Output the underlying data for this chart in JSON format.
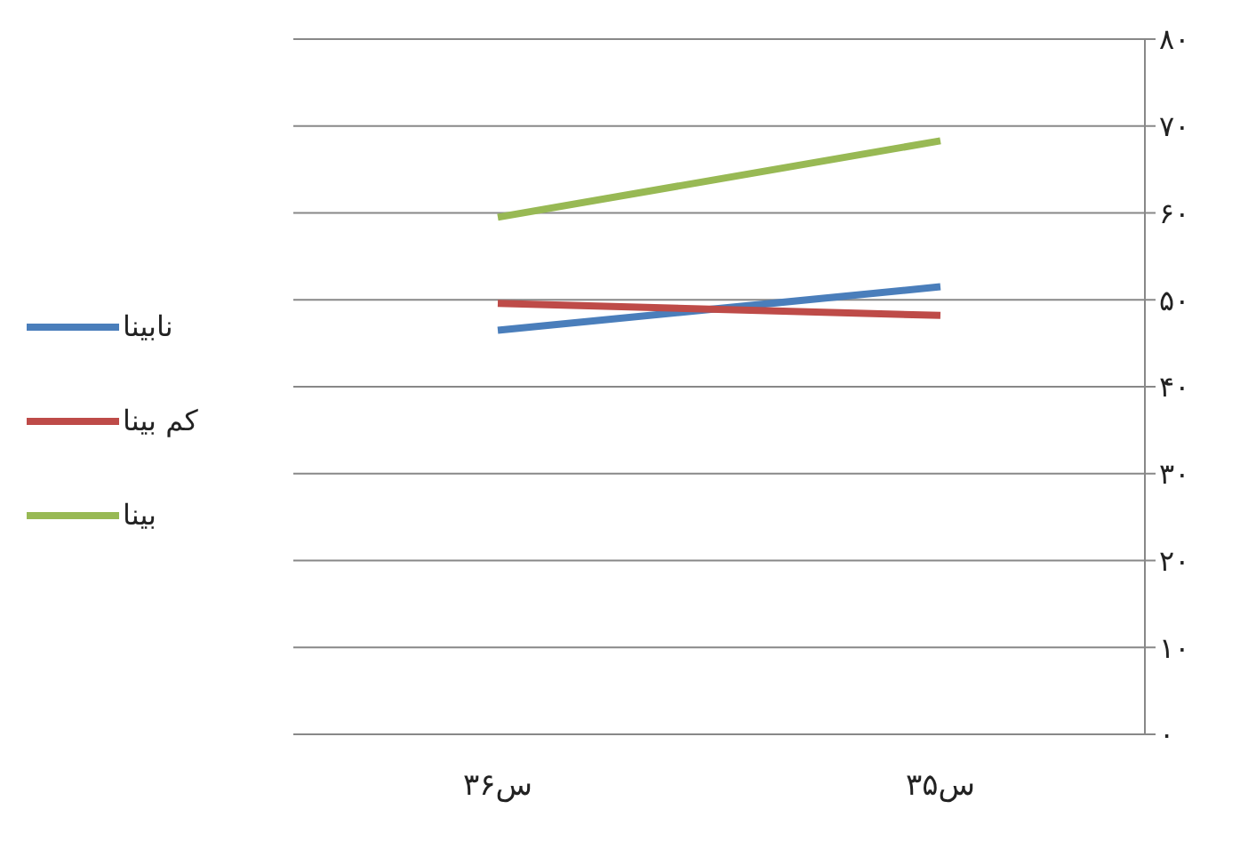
{
  "chart_data": {
    "type": "line",
    "categories": [
      "س۳۶",
      "س۳۵"
    ],
    "series": [
      {
        "name": "نابینا",
        "color": "#4a7ebb",
        "values": [
          46.5,
          51.5
        ]
      },
      {
        "name": "کم بینا",
        "color": "#be4b48",
        "values": [
          49.6,
          48.2
        ]
      },
      {
        "name": "بینا",
        "color": "#98b954",
        "values": [
          59.5,
          68.3
        ]
      }
    ],
    "ylim": [
      0,
      80
    ],
    "yticks": [
      {
        "value": 0,
        "label": "۰"
      },
      {
        "value": 10,
        "label": "۱۰"
      },
      {
        "value": 20,
        "label": "۲۰"
      },
      {
        "value": 30,
        "label": "۳۰"
      },
      {
        "value": 40,
        "label": "۴۰"
      },
      {
        "value": 50,
        "label": "۵۰"
      },
      {
        "value": 60,
        "label": "۶۰"
      },
      {
        "value": 70,
        "label": "۷۰"
      },
      {
        "value": 80,
        "label": "۸۰"
      }
    ],
    "grid": "y",
    "legend": "left",
    "marker": "none",
    "line_style": "solid"
  }
}
